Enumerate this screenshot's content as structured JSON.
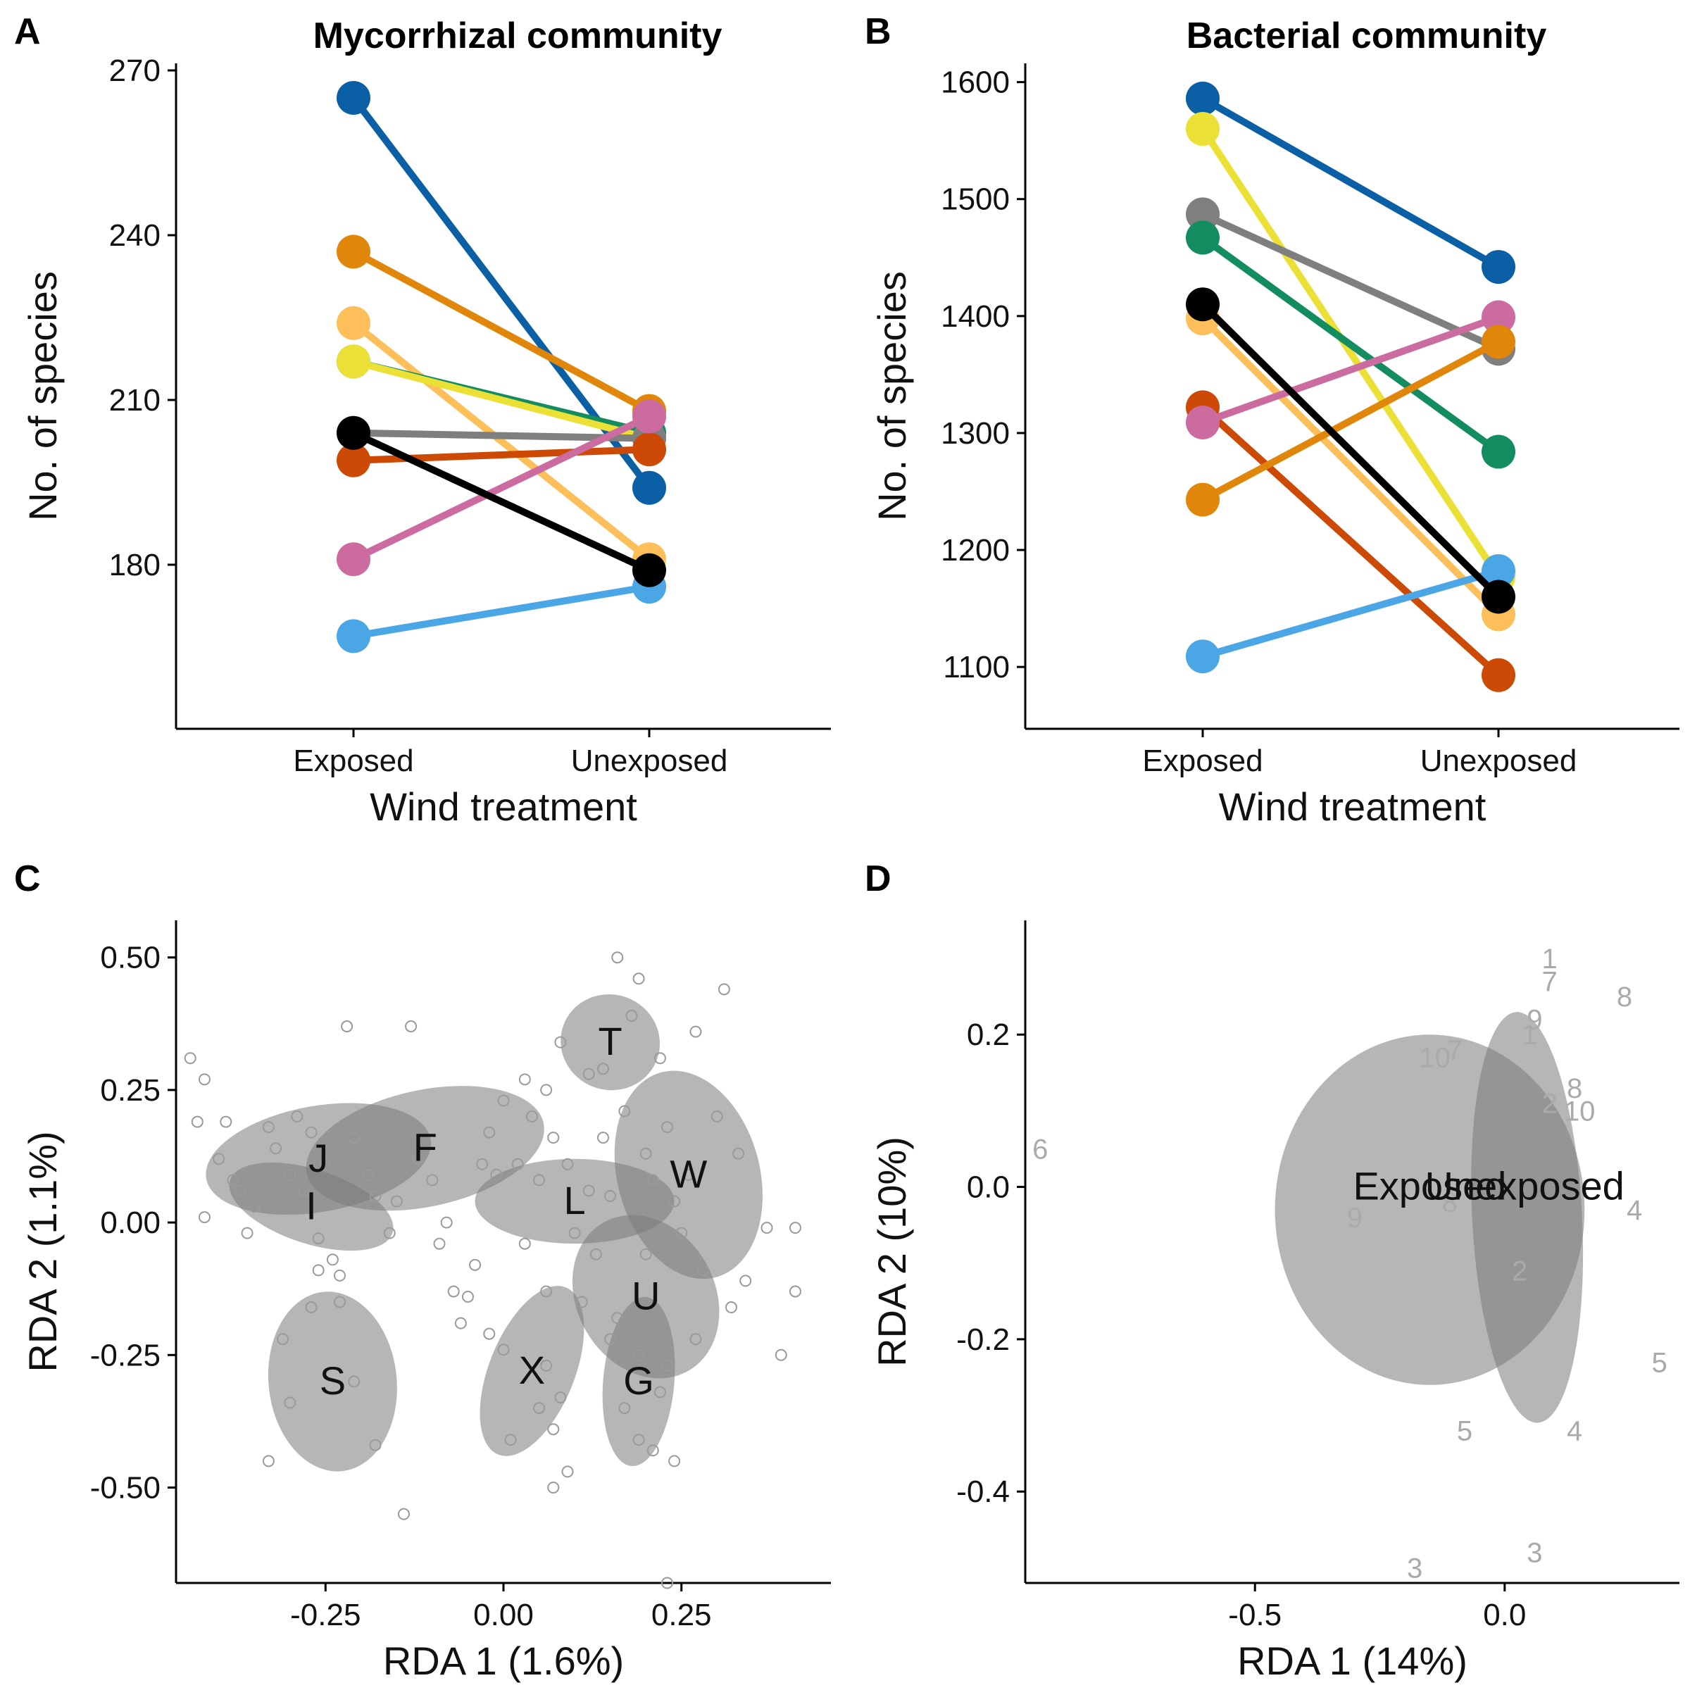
{
  "chart_data": [
    {
      "panel": "A",
      "type": "line",
      "title": "Mycorrhizal community",
      "xlabel": "Wind treatment",
      "ylabel": "No. of species",
      "categories": [
        "Exposed",
        "Unexposed"
      ],
      "yticks": [
        "180",
        "210",
        "240",
        "270"
      ],
      "ylim": [
        155,
        270
      ],
      "series": [
        {
          "color": "#0a5fa5",
          "values": [
            265,
            194
          ]
        },
        {
          "color": "#e0860b",
          "values": [
            237,
            208
          ]
        },
        {
          "color": "#fdbf5a",
          "values": [
            224,
            181
          ]
        },
        {
          "color": "#138d5f",
          "values": [
            217,
            204
          ]
        },
        {
          "color": "#ebe035",
          "values": [
            217,
            203
          ]
        },
        {
          "color": "#7f7f7f",
          "values": [
            204,
            203
          ]
        },
        {
          "color": "#cc4a06",
          "values": [
            199,
            201
          ]
        },
        {
          "color": "#cc6b9f",
          "values": [
            181,
            207
          ]
        },
        {
          "color": "#4aa6e4",
          "values": [
            167,
            176
          ]
        },
        {
          "color": "#000000",
          "values": [
            204,
            179
          ]
        }
      ]
    },
    {
      "panel": "B",
      "type": "line",
      "title": "Bacterial community",
      "xlabel": "Wind treatment",
      "ylabel": "No. of species",
      "categories": [
        "Exposed",
        "Unexposed"
      ],
      "yticks": [
        "1100",
        "1200",
        "1300",
        "1400",
        "1500",
        "1600"
      ],
      "ylim": [
        1070,
        1610
      ],
      "series": [
        {
          "color": "#0a5fa5",
          "values": [
            1586,
            1442
          ]
        },
        {
          "color": "#ebe035",
          "values": [
            1560,
            1177
          ]
        },
        {
          "color": "#7f7f7f",
          "values": [
            1487,
            1372
          ]
        },
        {
          "color": "#138d5f",
          "values": [
            1467,
            1284
          ]
        },
        {
          "color": "#fdbf5a",
          "values": [
            1398,
            1145
          ]
        },
        {
          "color": "#cc4a06",
          "values": [
            1322,
            1093
          ]
        },
        {
          "color": "#cc6b9f",
          "values": [
            1309,
            1399
          ]
        },
        {
          "color": "#e0860b",
          "values": [
            1243,
            1378
          ]
        },
        {
          "color": "#4aa6e4",
          "values": [
            1109,
            1182
          ]
        },
        {
          "color": "#000000",
          "values": [
            1410,
            1160
          ]
        }
      ]
    },
    {
      "panel": "C",
      "type": "scatter",
      "xlabel": "RDA 1 (1.6%)",
      "ylabel": "RDA 2 (1.1%)",
      "xticks": [
        "-0.25",
        "0.00",
        "0.25"
      ],
      "yticks": [
        "-0.50",
        "-0.25",
        "0.00",
        "0.25",
        "0.50"
      ],
      "xlim": [
        -0.46,
        0.46
      ],
      "ylim": [
        -0.68,
        0.57
      ],
      "ellipses": [
        {
          "label": "J",
          "cx": -0.26,
          "cy": 0.12,
          "rx": 0.16,
          "ry": 0.1,
          "angle": -10
        },
        {
          "label": "F",
          "cx": -0.11,
          "cy": 0.14,
          "rx": 0.17,
          "ry": 0.11,
          "angle": -12
        },
        {
          "label": "I",
          "cx": -0.27,
          "cy": 0.03,
          "rx": 0.12,
          "ry": 0.07,
          "angle": 18
        },
        {
          "label": "L",
          "cx": 0.1,
          "cy": 0.04,
          "rx": 0.14,
          "ry": 0.08,
          "angle": 0
        },
        {
          "label": "T",
          "cx": 0.15,
          "cy": 0.34,
          "rx": 0.07,
          "ry": 0.09,
          "angle": 20
        },
        {
          "label": "W",
          "cx": 0.26,
          "cy": 0.09,
          "rx": 0.1,
          "ry": 0.2,
          "angle": -15
        },
        {
          "label": "U",
          "cx": 0.2,
          "cy": -0.14,
          "rx": 0.12,
          "ry": 0.13,
          "angle": 60
        },
        {
          "label": "G",
          "cx": 0.19,
          "cy": -0.3,
          "rx": 0.05,
          "ry": 0.16,
          "angle": 5
        },
        {
          "label": "X",
          "cx": 0.04,
          "cy": -0.28,
          "rx": 0.06,
          "ry": 0.17,
          "angle": 22
        },
        {
          "label": "S",
          "cx": -0.24,
          "cy": -0.3,
          "rx": 0.09,
          "ry": 0.17,
          "angle": -6
        }
      ],
      "points": [
        [
          -0.44,
          0.31
        ],
        [
          -0.43,
          0.19
        ],
        [
          -0.42,
          0.27
        ],
        [
          -0.42,
          0.01
        ],
        [
          -0.4,
          0.12
        ],
        [
          -0.39,
          0.19
        ],
        [
          -0.38,
          0.08
        ],
        [
          -0.37,
          0.06
        ],
        [
          -0.36,
          -0.02
        ],
        [
          -0.35,
          0.03
        ],
        [
          -0.33,
          0.18
        ],
        [
          -0.32,
          0.14
        ],
        [
          -0.3,
          0.09
        ],
        [
          -0.29,
          0.2
        ],
        [
          -0.28,
          0.06
        ],
        [
          -0.27,
          0.17
        ],
        [
          -0.26,
          -0.03
        ],
        [
          -0.25,
          0.11
        ],
        [
          -0.24,
          -0.07
        ],
        [
          -0.23,
          -0.1
        ],
        [
          -0.22,
          0.37
        ],
        [
          -0.21,
          0.16
        ],
        [
          -0.19,
          0.09
        ],
        [
          -0.18,
          0.05
        ],
        [
          -0.16,
          -0.02
        ],
        [
          -0.15,
          0.04
        ],
        [
          -0.13,
          0.37
        ],
        [
          -0.12,
          0.12
        ],
        [
          -0.1,
          0.08
        ],
        [
          -0.09,
          -0.04
        ],
        [
          -0.08,
          0.0
        ],
        [
          -0.07,
          -0.13
        ],
        [
          -0.06,
          -0.19
        ],
        [
          -0.05,
          -0.14
        ],
        [
          -0.03,
          0.11
        ],
        [
          -0.02,
          0.17
        ],
        [
          -0.01,
          0.09
        ],
        [
          0.0,
          0.23
        ],
        [
          0.02,
          0.11
        ],
        [
          0.03,
          0.27
        ],
        [
          0.03,
          -0.04
        ],
        [
          0.04,
          0.2
        ],
        [
          0.05,
          0.08
        ],
        [
          0.06,
          0.25
        ],
        [
          0.07,
          0.16
        ],
        [
          0.08,
          0.34
        ],
        [
          0.09,
          0.11
        ],
        [
          0.1,
          -0.02
        ],
        [
          0.12,
          0.28
        ],
        [
          0.13,
          -0.06
        ],
        [
          0.14,
          0.16
        ],
        [
          0.15,
          0.05
        ],
        [
          0.16,
          0.5
        ],
        [
          0.17,
          0.21
        ],
        [
          0.18,
          0.39
        ],
        [
          0.19,
          0.46
        ],
        [
          0.2,
          0.13
        ],
        [
          0.21,
          0.08
        ],
        [
          0.22,
          0.31
        ],
        [
          0.23,
          0.18
        ],
        [
          0.24,
          0.04
        ],
        [
          0.25,
          -0.02
        ],
        [
          0.26,
          0.09
        ],
        [
          0.27,
          0.36
        ],
        [
          0.28,
          -0.09
        ],
        [
          0.3,
          0.2
        ],
        [
          0.31,
          0.44
        ],
        [
          0.32,
          -0.16
        ],
        [
          0.33,
          0.13
        ],
        [
          0.34,
          -0.11
        ],
        [
          0.37,
          -0.01
        ],
        [
          0.39,
          -0.25
        ],
        [
          0.41,
          -0.13
        ],
        [
          0.41,
          -0.01
        ],
        [
          -0.27,
          -0.16
        ],
        [
          -0.31,
          -0.22
        ],
        [
          -0.3,
          -0.34
        ],
        [
          -0.26,
          -0.09
        ],
        [
          -0.23,
          -0.15
        ],
        [
          -0.21,
          -0.3
        ],
        [
          -0.18,
          -0.42
        ],
        [
          -0.33,
          -0.45
        ],
        [
          -0.14,
          -0.55
        ],
        [
          -0.02,
          -0.21
        ],
        [
          0.01,
          -0.41
        ],
        [
          0.05,
          -0.35
        ],
        [
          0.06,
          -0.27
        ],
        [
          0.07,
          -0.39
        ],
        [
          0.08,
          -0.33
        ],
        [
          0.09,
          -0.47
        ],
        [
          0.07,
          -0.5
        ],
        [
          0.16,
          -0.18
        ],
        [
          0.17,
          -0.35
        ],
        [
          0.19,
          -0.41
        ],
        [
          0.21,
          -0.43
        ],
        [
          0.22,
          -0.32
        ],
        [
          0.23,
          -0.27
        ],
        [
          0.24,
          -0.45
        ],
        [
          0.23,
          -0.68
        ],
        [
          0.19,
          -0.25
        ],
        [
          0.15,
          -0.22
        ],
        [
          0.11,
          -0.15
        ],
        [
          0.0,
          -0.24
        ],
        [
          -0.04,
          -0.08
        ],
        [
          0.06,
          -0.13
        ],
        [
          0.12,
          0.06
        ],
        [
          0.2,
          -0.06
        ],
        [
          0.27,
          -0.22
        ],
        [
          0.14,
          0.29
        ]
      ]
    },
    {
      "panel": "D",
      "type": "scatter",
      "xlabel": "RDA 1 (14%)",
      "ylabel": "RDA 2 (10%)",
      "xticks": [
        "-0.5",
        "0.0"
      ],
      "yticks": [
        "-0.4",
        "-0.2",
        "0.0",
        "0.2"
      ],
      "xlim": [
        -0.96,
        0.35
      ],
      "ylim": [
        -0.52,
        0.35
      ],
      "ellipses": [
        {
          "label": "Exposed",
          "cx": -0.15,
          "cy": -0.03,
          "rx": 0.31,
          "ry": 0.23,
          "angle": 0
        },
        {
          "label": "Unexposed",
          "cx": 0.045,
          "cy": -0.04,
          "rx": 0.11,
          "ry": 0.27,
          "angle": -3
        }
      ],
      "group_labels": [
        {
          "text": "Exposed",
          "x": -0.15,
          "y": 0.0
        },
        {
          "text": "Unexposed",
          "x": 0.04,
          "y": 0.0
        }
      ],
      "points": [
        {
          "text": "6",
          "x": -0.93,
          "y": 0.05
        },
        {
          "text": "9",
          "x": -0.3,
          "y": -0.04
        },
        {
          "text": "10",
          "x": -0.14,
          "y": 0.17
        },
        {
          "text": "7",
          "x": -0.1,
          "y": 0.18
        },
        {
          "text": "8",
          "x": -0.11,
          "y": -0.02
        },
        {
          "text": "1",
          "x": 0.09,
          "y": 0.3
        },
        {
          "text": "7",
          "x": 0.09,
          "y": 0.27
        },
        {
          "text": "8",
          "x": 0.24,
          "y": 0.25
        },
        {
          "text": "9",
          "x": 0.06,
          "y": 0.22
        },
        {
          "text": "1",
          "x": 0.05,
          "y": 0.2
        },
        {
          "text": "8",
          "x": 0.14,
          "y": 0.13
        },
        {
          "text": "2",
          "x": 0.09,
          "y": 0.11
        },
        {
          "text": "10",
          "x": 0.15,
          "y": 0.1
        },
        {
          "text": "4",
          "x": 0.26,
          "y": -0.03
        },
        {
          "text": "2",
          "x": 0.03,
          "y": -0.11
        },
        {
          "text": "5",
          "x": 0.31,
          "y": -0.23
        },
        {
          "text": "5",
          "x": -0.08,
          "y": -0.32
        },
        {
          "text": "4",
          "x": 0.14,
          "y": -0.32
        },
        {
          "text": "3",
          "x": -0.18,
          "y": -0.5
        },
        {
          "text": "3",
          "x": 0.06,
          "y": -0.48
        }
      ]
    }
  ]
}
